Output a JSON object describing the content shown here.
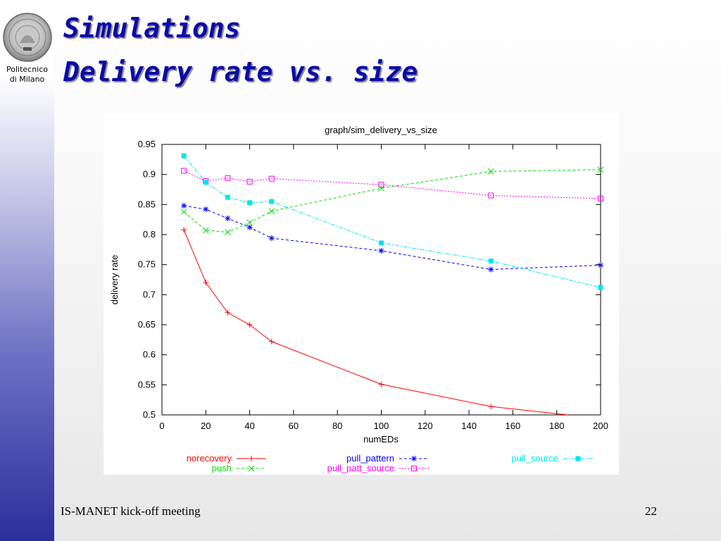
{
  "slide": {
    "title_line1": "Simulations",
    "title_line2": "Delivery rate vs. size",
    "institution_line1": "Politecnico",
    "institution_line2": "di Milano",
    "footer": "IS-MANET kick-off meeting",
    "page_number": "22",
    "title_color": "#0b0ba6"
  },
  "chart_data": {
    "type": "line",
    "title": "graph/sim_delivery_vs_size",
    "xlabel": "numEDs",
    "ylabel": "delivery rate",
    "xlim": [
      0,
      200
    ],
    "ylim": [
      0.5,
      0.95
    ],
    "x_ticks": [
      0,
      20,
      40,
      60,
      80,
      100,
      120,
      140,
      160,
      180,
      200
    ],
    "y_ticks": [
      0.5,
      0.55,
      0.6,
      0.65,
      0.7,
      0.75,
      0.8,
      0.85,
      0.9,
      0.95
    ],
    "grid": false,
    "legend_position": "bottom",
    "series": [
      {
        "name": "norecovery",
        "color": "#ff0000",
        "marker": "plus",
        "dash": "",
        "x": [
          10,
          20,
          30,
          40,
          50,
          100,
          150,
          185
        ],
        "y": [
          0.808,
          0.72,
          0.67,
          0.65,
          0.622,
          0.551,
          0.514,
          0.5
        ]
      },
      {
        "name": "push",
        "color": "#00dd00",
        "marker": "x",
        "dash": "4,3",
        "x": [
          10,
          20,
          30,
          40,
          50,
          100,
          150,
          200
        ],
        "y": [
          0.838,
          0.807,
          0.804,
          0.82,
          0.839,
          0.877,
          0.905,
          0.908
        ]
      },
      {
        "name": "pull_pattern",
        "color": "#0000ff",
        "marker": "star",
        "dash": "4,3",
        "x": [
          10,
          20,
          30,
          40,
          50,
          100,
          150,
          200
        ],
        "y": [
          0.848,
          0.842,
          0.827,
          0.812,
          0.794,
          0.773,
          0.742,
          0.749
        ]
      },
      {
        "name": "pull_patt_source",
        "color": "#ff00ff",
        "marker": "square",
        "dash": "2,2",
        "x": [
          10,
          20,
          30,
          40,
          50,
          100,
          150,
          200
        ],
        "y": [
          0.906,
          0.889,
          0.894,
          0.888,
          0.893,
          0.883,
          0.865,
          0.86
        ]
      },
      {
        "name": "pull_source",
        "color": "#00e5ee",
        "marker": "filled-square",
        "dash": "6,2,2,2",
        "x": [
          10,
          20,
          30,
          40,
          50,
          100,
          150,
          200
        ],
        "y": [
          0.931,
          0.887,
          0.862,
          0.853,
          0.855,
          0.786,
          0.756,
          0.712
        ]
      }
    ]
  }
}
